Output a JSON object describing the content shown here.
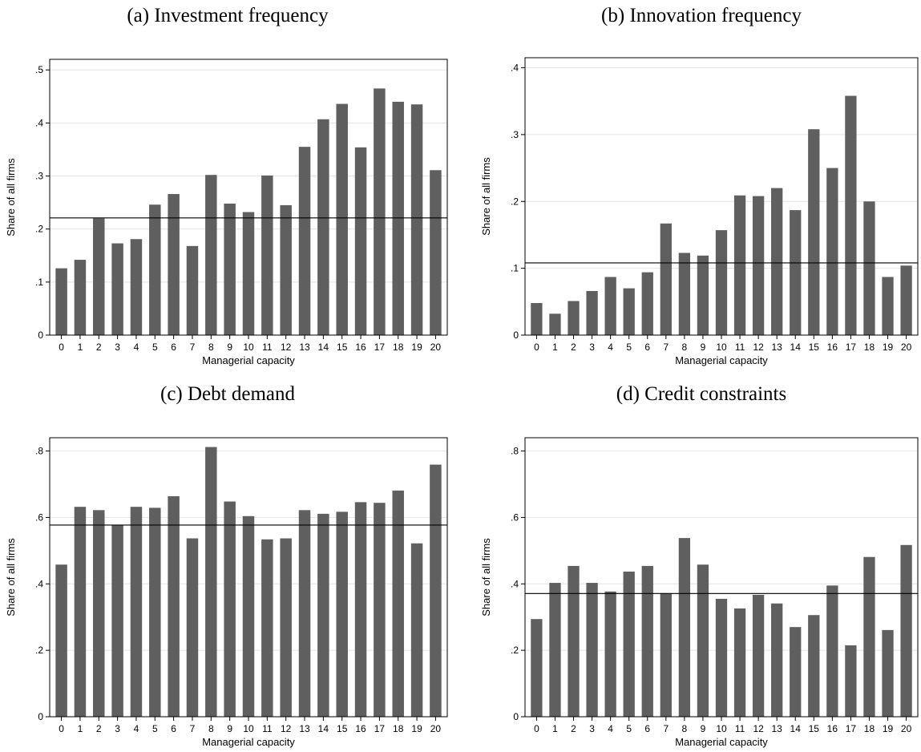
{
  "chart_data": [
    {
      "type": "bar",
      "title": "(a) Investment frequency",
      "xlabel": "Managerial capacity",
      "ylabel": "Share of all firms",
      "categories": [
        "0",
        "1",
        "2",
        "3",
        "4",
        "5",
        "6",
        "7",
        "8",
        "9",
        "10",
        "11",
        "12",
        "13",
        "14",
        "15",
        "16",
        "17",
        "18",
        "19",
        "20"
      ],
      "values": [
        0.126,
        0.142,
        0.22,
        0.173,
        0.181,
        0.246,
        0.266,
        0.168,
        0.302,
        0.248,
        0.232,
        0.301,
        0.245,
        0.355,
        0.407,
        0.436,
        0.354,
        0.465,
        0.44,
        0.435,
        0.311
      ],
      "reference_line": 0.221,
      "ylim": [
        0,
        0.52
      ],
      "yticks": [
        0,
        0.1,
        0.2,
        0.3,
        0.4,
        0.5
      ],
      "ytick_labels": [
        "0",
        ".1",
        ".2",
        ".3",
        ".4",
        ".5"
      ],
      "grid": true
    },
    {
      "type": "bar",
      "title": "(b) Innovation frequency",
      "xlabel": "Managerial capacity",
      "ylabel": "Share of all firms",
      "categories": [
        "0",
        "1",
        "2",
        "3",
        "4",
        "5",
        "6",
        "7",
        "8",
        "9",
        "10",
        "11",
        "12",
        "13",
        "14",
        "15",
        "16",
        "17",
        "18",
        "19",
        "20"
      ],
      "values": [
        0.048,
        0.032,
        0.051,
        0.066,
        0.087,
        0.07,
        0.094,
        0.167,
        0.123,
        0.119,
        0.157,
        0.209,
        0.208,
        0.22,
        0.187,
        0.308,
        0.25,
        0.358,
        0.2,
        0.087,
        0.104
      ],
      "reference_line": 0.108,
      "ylim": [
        0,
        0.415
      ],
      "yticks": [
        0,
        0.1,
        0.2,
        0.3,
        0.4
      ],
      "ytick_labels": [
        "0",
        ".1",
        ".2",
        ".3",
        ".4"
      ],
      "grid": true
    },
    {
      "type": "bar",
      "title": "(c) Debt demand",
      "xlabel": "Managerial capacity",
      "ylabel": "Share of all firms",
      "categories": [
        "0",
        "1",
        "2",
        "3",
        "4",
        "5",
        "6",
        "7",
        "8",
        "9",
        "10",
        "11",
        "12",
        "13",
        "14",
        "15",
        "16",
        "17",
        "18",
        "19",
        "20"
      ],
      "values": [
        0.458,
        0.632,
        0.622,
        0.578,
        0.632,
        0.629,
        0.664,
        0.537,
        0.812,
        0.648,
        0.604,
        0.534,
        0.537,
        0.622,
        0.611,
        0.617,
        0.646,
        0.644,
        0.681,
        0.522,
        0.759
      ],
      "reference_line": 0.577,
      "ylim": [
        0,
        0.84
      ],
      "yticks": [
        0,
        0.2,
        0.4,
        0.6,
        0.8
      ],
      "ytick_labels": [
        "0",
        ".2",
        ".4",
        ".6",
        ".8"
      ],
      "grid": true
    },
    {
      "type": "bar",
      "title": "(d) Credit constraints",
      "xlabel": "Managerial capacity",
      "ylabel": "Share of all firms",
      "categories": [
        "0",
        "1",
        "2",
        "3",
        "4",
        "5",
        "6",
        "7",
        "8",
        "9",
        "10",
        "11",
        "12",
        "13",
        "14",
        "15",
        "16",
        "17",
        "18",
        "19",
        "20"
      ],
      "values": [
        0.294,
        0.403,
        0.454,
        0.403,
        0.377,
        0.437,
        0.454,
        0.372,
        0.538,
        0.458,
        0.355,
        0.326,
        0.367,
        0.341,
        0.27,
        0.306,
        0.395,
        0.215,
        0.481,
        0.261,
        0.517
      ],
      "reference_line": 0.371,
      "ylim": [
        0,
        0.84
      ],
      "yticks": [
        0,
        0.2,
        0.4,
        0.6,
        0.8
      ],
      "ytick_labels": [
        "0",
        ".2",
        ".4",
        ".6",
        ".8"
      ],
      "grid": true
    }
  ],
  "colors": {
    "bar": "#5f5f5f",
    "grid": "#e4e4e4",
    "axis": "#000000",
    "reference_line": "#000000"
  }
}
